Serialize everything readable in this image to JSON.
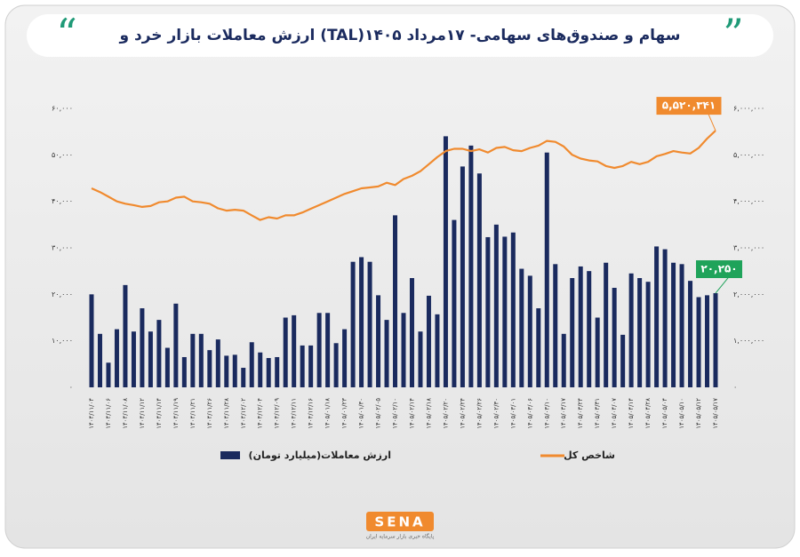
{
  "chart_data": {
    "type": "bar-line",
    "title": "ارزش معاملات بازار خرد و (TAL)سهام و صندوق‌های سهامی- ۱۷مرداد ۱۴۰۵",
    "categories": [
      "۱۴۰۴/۱۱/۰۴",
      null,
      "۱۴۰۴/۱۱/۰۶",
      null,
      "۱۴۰۴/۱۱/۰۸",
      null,
      "۱۴۰۴/۱۱/۱۲",
      null,
      "۱۴۰۴/۱۱/۱۴",
      null,
      "۱۴۰۴/۱۱/۱۹",
      null,
      "۱۴۰۴/۱۱/۲۱",
      null,
      "۱۴۰۴/۱۱/۲۶",
      null,
      "۱۴۰۴/۱۱/۲۸",
      null,
      "۱۴۰۴/۱۲/۰۲",
      null,
      "۱۴۰۴/۱۲/۰۴",
      null,
      "۱۴۰۴/۱۲/۰۹",
      null,
      "۱۴۰۴/۱۲/۱۱",
      null,
      "۱۴۰۴/۱۲/۱۶",
      null,
      "۱۴۰۵/۰۱/۱۸",
      null,
      "۱۴۰۵/۰۱/۲۳",
      null,
      "۱۴۰۵/۰۱/۳۰",
      null,
      "۱۴۰۵/۰۲/۰۵",
      null,
      "۱۴۰۵/۰۲/۱۰",
      null,
      "۱۴۰۵/۰۲/۱۴",
      null,
      "۱۴۰۵/۰۲/۱۸",
      null,
      "۱۴۰۵/۰۲/۲۰",
      null,
      "۱۴۰۵/۰۲/۲۴",
      null,
      "۱۴۰۵/۰۲/۲۶",
      null,
      "۱۴۰۵/۰۲/۳۰",
      null,
      "۱۴۰۵/۰۳/۰۱",
      null,
      "۱۴۰۵/۰۳/۰۶",
      null,
      "۱۴۰۵/۰۳/۱۰",
      null,
      "۱۴۰۵/۰۳/۱۷",
      null,
      "۱۴۰۵/۰۳/۲۴",
      null,
      "۱۴۰۵/۰۳/۳۱",
      null,
      "۱۴۰۵/۰۴/۰۷",
      null,
      "۱۴۰۵/۰۴/۱۴",
      null,
      "۱۴۰۵/۰۴/۲۸",
      null,
      "۱۴۰۵/۰۵/۰۴",
      null,
      "۱۴۰۵/۰۵/۱۰",
      null,
      "۱۴۰۵/۰۵/۱۲",
      null,
      "۱۴۰۵/۰۵/۱۷"
    ],
    "series": [
      {
        "name": "ارزش معاملات(میلیارد تومان)",
        "color": "#1a2a5e",
        "kind": "bar",
        "values": [
          20000,
          11500,
          5300,
          12500,
          22000,
          12000,
          17000,
          12000,
          14500,
          8500,
          18000,
          6500,
          11500,
          11500,
          8000,
          10300,
          6800,
          7000,
          4200,
          9700,
          7500,
          6300,
          6500,
          15000,
          15500,
          9000,
          9000,
          16000,
          16000,
          9500,
          12500,
          27000,
          28000,
          27000,
          19800,
          14500,
          37000,
          16000,
          23500,
          12000,
          19700,
          15700,
          54000,
          36000,
          47500,
          52000,
          46000,
          32300,
          35000,
          32400,
          33300,
          25500,
          24000,
          17000,
          50500,
          26500,
          11500,
          23500,
          26000,
          25000,
          15000,
          26800,
          21400,
          11300,
          24500,
          23500,
          22700,
          30300,
          29700,
          26800,
          26500,
          22900,
          19400,
          19800,
          20250
        ],
        "value_labels": [
          null,
          null,
          null,
          null,
          null,
          null,
          null,
          null,
          null,
          null,
          null,
          null,
          null,
          null,
          null,
          null,
          null,
          null,
          null,
          null,
          null,
          null,
          null,
          null,
          null,
          null,
          null,
          null,
          null,
          null,
          null,
          null,
          null,
          null,
          null,
          null,
          null,
          null,
          null,
          null,
          null,
          null,
          null,
          null,
          null,
          null,
          null,
          null,
          null,
          null,
          null,
          null,
          null,
          null,
          null,
          null,
          null,
          null,
          null,
          null,
          null,
          null,
          null,
          null,
          null,
          null,
          null,
          null,
          null,
          null,
          null,
          null,
          null,
          null,
          "۲۰,۲۵۰"
        ],
        "label_color": "#1fa35a"
      },
      {
        "name": "شاخص کل",
        "color": "#f08a2e",
        "kind": "line",
        "axis": "y2",
        "values": [
          4280000,
          4200000,
          4100000,
          4000000,
          3950000,
          3920000,
          3880000,
          3900000,
          3980000,
          4000000,
          4080000,
          4100000,
          4000000,
          3980000,
          3950000,
          3850000,
          3800000,
          3820000,
          3800000,
          3700000,
          3600000,
          3660000,
          3630000,
          3700000,
          3700000,
          3760000,
          3840000,
          3920000,
          4000000,
          4080000,
          4160000,
          4220000,
          4280000,
          4300000,
          4320000,
          4400000,
          4350000,
          4480000,
          4550000,
          4650000,
          4800000,
          4950000,
          5080000,
          5130000,
          5130000,
          5080000,
          5120000,
          5050000,
          5150000,
          5170000,
          5100000,
          5080000,
          5150000,
          5200000,
          5300000,
          5280000,
          5180000,
          5000000,
          4920000,
          4880000,
          4860000,
          4760000,
          4720000,
          4760000,
          4850000,
          4800000,
          4850000,
          4970000,
          5020000,
          5080000,
          5050000,
          5030000,
          5150000,
          5350000,
          5520341
        ],
        "value_labels": [
          null,
          null,
          null,
          null,
          null,
          null,
          null,
          null,
          null,
          null,
          null,
          null,
          null,
          null,
          null,
          null,
          null,
          null,
          null,
          null,
          null,
          null,
          null,
          null,
          null,
          null,
          null,
          null,
          null,
          null,
          null,
          null,
          null,
          null,
          null,
          null,
          null,
          null,
          null,
          null,
          null,
          null,
          null,
          null,
          null,
          null,
          null,
          null,
          null,
          null,
          null,
          null,
          null,
          null,
          null,
          null,
          null,
          null,
          null,
          null,
          null,
          null,
          null,
          null,
          null,
          null,
          null,
          null,
          null,
          null,
          null,
          null,
          null,
          null,
          "۵,۵۲۰,۳۴۱"
        ],
        "label_color": "#f08a2e"
      }
    ],
    "ylim": [
      0,
      60000
    ],
    "yticks": [
      {
        "value": 0,
        "label": "۰"
      },
      {
        "value": 10000,
        "label": "۱۰,۰۰۰"
      },
      {
        "value": 20000,
        "label": "۲۰,۰۰۰"
      },
      {
        "value": 30000,
        "label": "۳۰,۰۰۰"
      },
      {
        "value": 40000,
        "label": "۴۰,۰۰۰"
      },
      {
        "value": 50000,
        "label": "۵۰,۰۰۰"
      },
      {
        "value": 60000,
        "label": "۶۰,۰۰۰"
      }
    ],
    "y2lim": [
      0,
      6000000
    ],
    "y2ticks": [
      {
        "value": 0,
        "label": "۰"
      },
      {
        "value": 1000000,
        "label": "۱,۰۰۰,۰۰۰"
      },
      {
        "value": 2000000,
        "label": "۲,۰۰۰,۰۰۰"
      },
      {
        "value": 3000000,
        "label": "۳,۰۰۰,۰۰۰"
      },
      {
        "value": 4000000,
        "label": "۴,۰۰۰,۰۰۰"
      },
      {
        "value": 5000000,
        "label": "۵,۰۰۰,۰۰۰"
      },
      {
        "value": 6000000,
        "label": "۶,۰۰۰,۰۰۰"
      }
    ],
    "grid": false
  },
  "logo": "SENA",
  "logo_caption": "پایگاه خبری بازار سرمایه ایران"
}
